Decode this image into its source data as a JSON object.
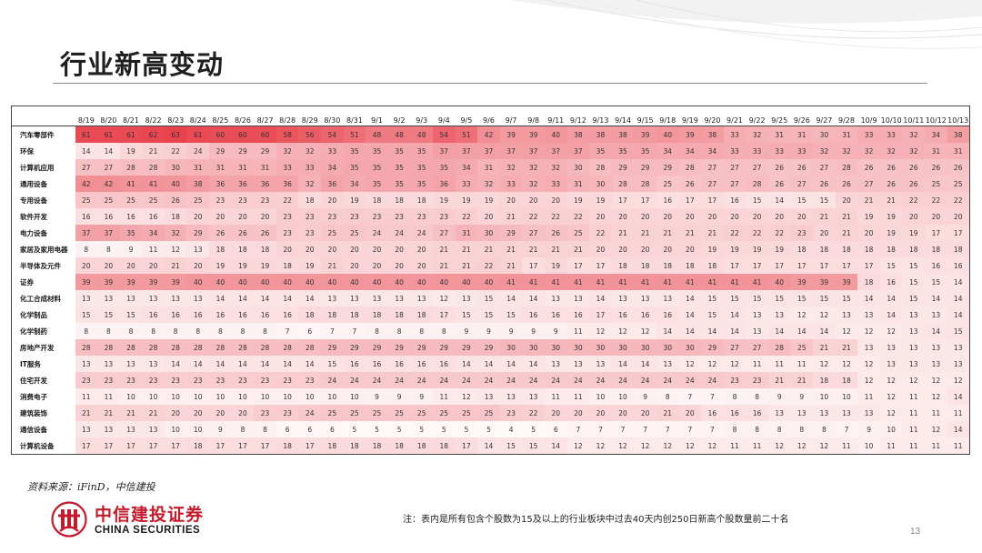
{
  "page": {
    "title": "行业新高变动",
    "source": "资料来源：iFinD，中信建投",
    "note": "注：表内是所有包含个股数为15及以上的行业板块中过去40天内创250日新高个股数量前二十名",
    "page_number": "13"
  },
  "logo": {
    "cn": "中信建投证券",
    "en": "CHINA SECURITIES"
  },
  "theme": {
    "heat_max_color": "#e8424c",
    "heat_min_color": "#ffffff",
    "text_color": "#333333",
    "logo_red": "#c41a2c"
  },
  "chart_data": {
    "type": "heatmap",
    "x": [
      "8/19",
      "8/20",
      "8/21",
      "8/22",
      "8/23",
      "8/24",
      "8/25",
      "8/26",
      "8/27",
      "8/28",
      "8/29",
      "8/30",
      "8/31",
      "9/1",
      "9/2",
      "9/3",
      "9/4",
      "9/5",
      "9/6",
      "9/7",
      "9/8",
      "9/11",
      "9/12",
      "9/13",
      "9/14",
      "9/15",
      "9/18",
      "9/19",
      "9/20",
      "9/21",
      "9/22",
      "9/25",
      "9/26",
      "9/27",
      "9/28",
      "10/9",
      "10/10",
      "10/11",
      "10/12",
      "10/13"
    ],
    "y": [
      "汽车零部件",
      "环保",
      "计算机应用",
      "通用设备",
      "专用设备",
      "软件开发",
      "电力设备",
      "家居及家用电器",
      "半导体及元件",
      "证券",
      "化工合成材料",
      "化学制品",
      "化学制药",
      "房地产开发",
      "IT服务",
      "住宅开发",
      "消费电子",
      "建筑装饰",
      "通信设备",
      "计算机设备"
    ],
    "values": [
      [
        61,
        61,
        61,
        62,
        63,
        61,
        60,
        60,
        60,
        58,
        56,
        54,
        51,
        48,
        48,
        48,
        54,
        51,
        42,
        39,
        39,
        40,
        38,
        38,
        38,
        39,
        40,
        39,
        38,
        33,
        32,
        31,
        31,
        30,
        31,
        33,
        33,
        32,
        34,
        38
      ],
      [
        14,
        14,
        19,
        21,
        22,
        24,
        29,
        29,
        29,
        32,
        32,
        33,
        35,
        35,
        35,
        35,
        37,
        37,
        37,
        37,
        37,
        37,
        37,
        35,
        35,
        35,
        34,
        34,
        34,
        33,
        33,
        33,
        33,
        32,
        32,
        32,
        32,
        32,
        31,
        31
      ],
      [
        27,
        27,
        28,
        28,
        30,
        31,
        31,
        31,
        31,
        33,
        33,
        34,
        35,
        35,
        35,
        35,
        35,
        34,
        31,
        32,
        32,
        32,
        30,
        28,
        29,
        29,
        29,
        28,
        27,
        27,
        27,
        26,
        26,
        27,
        28,
        26,
        26,
        26,
        26,
        26
      ],
      [
        42,
        42,
        41,
        41,
        40,
        38,
        36,
        36,
        36,
        36,
        32,
        36,
        34,
        35,
        35,
        35,
        36,
        33,
        32,
        33,
        32,
        33,
        31,
        30,
        28,
        28,
        25,
        26,
        27,
        27,
        28,
        26,
        27,
        26,
        26,
        27,
        26,
        26,
        25,
        25
      ],
      [
        25,
        25,
        25,
        25,
        26,
        25,
        23,
        23,
        23,
        22,
        18,
        20,
        19,
        18,
        18,
        18,
        19,
        19,
        19,
        20,
        20,
        20,
        19,
        19,
        17,
        17,
        16,
        17,
        17,
        16,
        15,
        14,
        15,
        15,
        20,
        21,
        21,
        22,
        22,
        22
      ],
      [
        16,
        16,
        16,
        16,
        18,
        20,
        20,
        20,
        20,
        23,
        23,
        23,
        23,
        23,
        23,
        23,
        23,
        22,
        20,
        21,
        22,
        22,
        22,
        20,
        20,
        20,
        20,
        20,
        20,
        20,
        20,
        20,
        20,
        21,
        21,
        19,
        19,
        20,
        20,
        20
      ],
      [
        37,
        37,
        35,
        34,
        32,
        29,
        26,
        26,
        26,
        23,
        23,
        25,
        25,
        24,
        24,
        24,
        27,
        31,
        30,
        29,
        27,
        26,
        25,
        22,
        21,
        21,
        21,
        21,
        21,
        22,
        22,
        22,
        23,
        20,
        21,
        20,
        19,
        19,
        17,
        17
      ],
      [
        8,
        8,
        9,
        11,
        12,
        13,
        18,
        18,
        18,
        20,
        20,
        20,
        20,
        20,
        20,
        20,
        21,
        21,
        21,
        21,
        21,
        21,
        21,
        20,
        20,
        20,
        20,
        20,
        19,
        19,
        19,
        19,
        18,
        18,
        18,
        18,
        18,
        18,
        18,
        18
      ],
      [
        20,
        20,
        20,
        20,
        21,
        20,
        19,
        19,
        19,
        18,
        19,
        21,
        20,
        20,
        20,
        20,
        21,
        21,
        22,
        21,
        17,
        19,
        17,
        17,
        18,
        18,
        18,
        18,
        18,
        17,
        17,
        17,
        17,
        17,
        17,
        17,
        15,
        15,
        16,
        16
      ],
      [
        39,
        39,
        39,
        39,
        39,
        40,
        40,
        40,
        40,
        40,
        40,
        40,
        40,
        40,
        40,
        40,
        40,
        40,
        40,
        41,
        41,
        41,
        41,
        41,
        41,
        41,
        41,
        41,
        41,
        41,
        41,
        40,
        39,
        39,
        39,
        18,
        16,
        15,
        15,
        14
      ],
      [
        13,
        13,
        13,
        13,
        13,
        13,
        14,
        14,
        14,
        14,
        14,
        13,
        13,
        13,
        13,
        13,
        12,
        13,
        15,
        14,
        14,
        13,
        13,
        14,
        13,
        13,
        13,
        14,
        15,
        15,
        15,
        15,
        15,
        15,
        15,
        14,
        14,
        15,
        14,
        14
      ],
      [
        15,
        15,
        15,
        16,
        16,
        16,
        16,
        16,
        16,
        16,
        18,
        18,
        18,
        18,
        18,
        18,
        17,
        15,
        15,
        15,
        16,
        16,
        16,
        17,
        16,
        16,
        16,
        14,
        15,
        14,
        13,
        13,
        12,
        12,
        13,
        13,
        14,
        13,
        13,
        14
      ],
      [
        8,
        8,
        8,
        8,
        8,
        8,
        8,
        8,
        8,
        7,
        6,
        7,
        7,
        8,
        8,
        8,
        8,
        9,
        9,
        9,
        9,
        9,
        11,
        12,
        12,
        12,
        14,
        14,
        14,
        14,
        13,
        14,
        14,
        14,
        12,
        12,
        12,
        13,
        14,
        15
      ],
      [
        28,
        28,
        28,
        28,
        28,
        28,
        28,
        28,
        28,
        28,
        28,
        29,
        29,
        29,
        29,
        29,
        29,
        29,
        29,
        30,
        30,
        30,
        30,
        30,
        30,
        30,
        30,
        30,
        29,
        27,
        27,
        28,
        25,
        21,
        21,
        13,
        13,
        13,
        13,
        13
      ],
      [
        13,
        13,
        13,
        13,
        14,
        14,
        14,
        14,
        14,
        14,
        14,
        15,
        16,
        16,
        16,
        16,
        16,
        14,
        14,
        14,
        14,
        13,
        13,
        13,
        14,
        14,
        13,
        12,
        12,
        12,
        11,
        11,
        11,
        12,
        12,
        12,
        13,
        13,
        13,
        13
      ],
      [
        23,
        23,
        23,
        23,
        23,
        23,
        23,
        23,
        23,
        23,
        23,
        24,
        24,
        24,
        24,
        24,
        24,
        24,
        24,
        24,
        24,
        24,
        24,
        24,
        24,
        24,
        24,
        24,
        24,
        23,
        23,
        21,
        21,
        18,
        18,
        12,
        12,
        12,
        12,
        12
      ],
      [
        11,
        11,
        10,
        10,
        10,
        10,
        10,
        10,
        10,
        10,
        10,
        10,
        10,
        9,
        9,
        9,
        11,
        12,
        13,
        13,
        13,
        11,
        11,
        10,
        10,
        9,
        8,
        7,
        7,
        8,
        8,
        9,
        9,
        10,
        10,
        11,
        12,
        11,
        12,
        14
      ],
      [
        21,
        21,
        21,
        21,
        20,
        20,
        20,
        20,
        23,
        23,
        24,
        25,
        25,
        25,
        25,
        25,
        25,
        25,
        25,
        23,
        22,
        20,
        20,
        20,
        20,
        20,
        21,
        20,
        16,
        16,
        16,
        13,
        13,
        13,
        13,
        13,
        12,
        11,
        11,
        11
      ],
      [
        13,
        13,
        13,
        13,
        10,
        10,
        9,
        8,
        8,
        6,
        6,
        6,
        5,
        5,
        5,
        5,
        5,
        5,
        5,
        4,
        5,
        6,
        7,
        7,
        7,
        7,
        7,
        7,
        7,
        8,
        8,
        8,
        8,
        8,
        7,
        9,
        10,
        11,
        12,
        14
      ],
      [
        17,
        17,
        17,
        17,
        17,
        18,
        17,
        17,
        17,
        18,
        17,
        18,
        18,
        18,
        18,
        18,
        18,
        17,
        14,
        15,
        15,
        14,
        12,
        12,
        12,
        12,
        12,
        12,
        12,
        11,
        11,
        12,
        12,
        12,
        11,
        10,
        11,
        11,
        11,
        11
      ]
    ]
  }
}
